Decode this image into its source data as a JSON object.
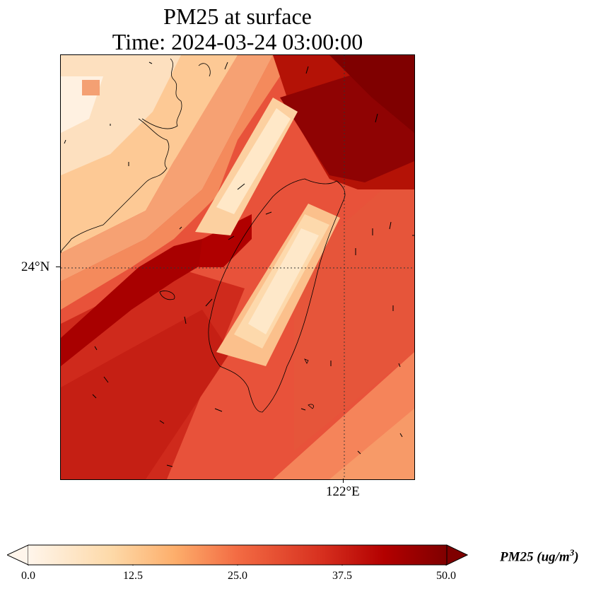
{
  "title": {
    "line1": "PM25 at surface",
    "line2": "Time: 2024-03-24 03:00:00"
  },
  "map": {
    "lat_label": "24°N",
    "lon_label": "122°E",
    "colormap": [
      "#fff5eb",
      "#fdd9a8",
      "#fdae6b",
      "#f16913",
      "#d7301f",
      "#b30000",
      "#7f0000"
    ]
  },
  "colorbar": {
    "ticks": [
      "0.0",
      "12.5",
      "25.0",
      "37.5",
      "50.0"
    ],
    "label_main": "PM25 (ug/m",
    "label_sup": "3",
    "label_end": ")",
    "min": 0.0,
    "max": 50.0,
    "extend": "both"
  }
}
